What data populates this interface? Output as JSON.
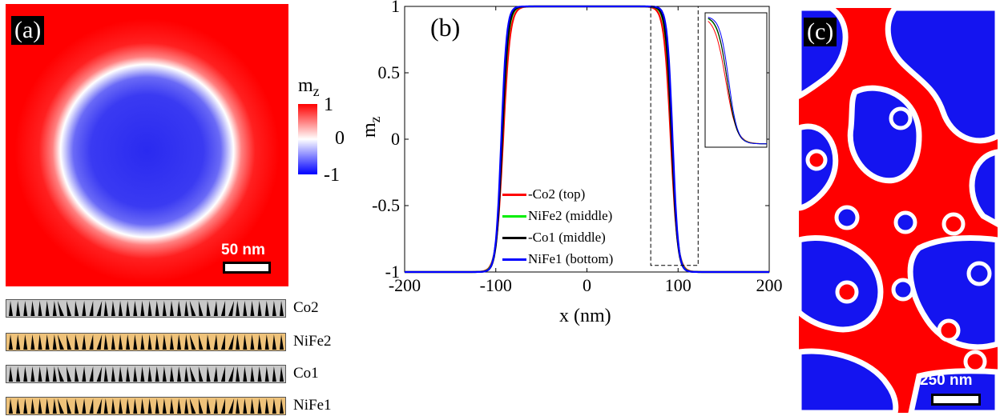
{
  "panel_a": {
    "label": "(a)",
    "scalebar": "50 nm",
    "colorbar": {
      "title": "m",
      "title_sub": "z",
      "ticks": [
        "1",
        "0",
        "-1"
      ],
      "colors": [
        "#ff0000",
        "#ffffff",
        "#0000ff"
      ]
    }
  },
  "layers": [
    {
      "name": "Co2",
      "color": "#c8c8c8"
    },
    {
      "name": "NiFe2",
      "color": "#eec27a"
    },
    {
      "name": "Co1",
      "color": "#c8c8c8"
    },
    {
      "name": "NiFe1",
      "color": "#eec27a"
    }
  ],
  "panel_c": {
    "label": "(c)",
    "scalebar": "250 nm"
  },
  "chart_data": {
    "type": "line",
    "panel_label": "(b)",
    "xlabel": "x (nm)",
    "ylabel": "m",
    "ylabel_sub": "z",
    "xlim": [
      -200,
      200
    ],
    "ylim": [
      -1,
      1
    ],
    "xticks": [
      "-200",
      "-100",
      "0",
      "100",
      "200"
    ],
    "yticks": [
      "1",
      "0.5",
      "0",
      "-0.5",
      "-1"
    ],
    "legend_position": "lower-left",
    "inset": {
      "x_range": [
        70,
        122
      ],
      "y_range": [
        -0.95,
        1.0
      ]
    },
    "series": [
      {
        "name": "-Co2 (top)",
        "color": "#ff0000",
        "center": 92,
        "width": 12.0
      },
      {
        "name": "NiFe2 (middle)",
        "color": "#00ee00",
        "center": 93,
        "width": 10.7
      },
      {
        "name": "-Co1 (middle)",
        "color": "#000000",
        "center": 93,
        "width": 10.2
      },
      {
        "name": "NiFe1 (bottom)",
        "color": "#0000ff",
        "center": 94,
        "width": 9.5
      }
    ],
    "x": [
      -200,
      -180,
      -160,
      -140,
      -130,
      -120,
      -115,
      -110,
      -105,
      -100,
      -95,
      -90,
      -85,
      -80,
      -75,
      -70,
      -60,
      -40,
      -20,
      0,
      20,
      40,
      60,
      70,
      75,
      80,
      85,
      90,
      95,
      100,
      105,
      110,
      115,
      120,
      130,
      140,
      160,
      180,
      200
    ]
  }
}
